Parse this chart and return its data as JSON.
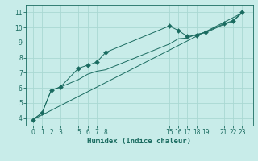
{
  "xlabel": "Humidex (Indice chaleur)",
  "ylabel": "",
  "bg_color": "#c8ece9",
  "grid_color": "#aad8d3",
  "line_color": "#1a6b60",
  "xlim": [
    -0.8,
    24.2
  ],
  "ylim": [
    3.5,
    11.5
  ],
  "xticks": [
    0,
    1,
    2,
    3,
    5,
    6,
    7,
    8,
    15,
    16,
    17,
    18,
    19,
    21,
    22,
    23
  ],
  "yticks": [
    4,
    5,
    6,
    7,
    8,
    9,
    10,
    11
  ],
  "series1_x": [
    0,
    1,
    2,
    3,
    5,
    6,
    7,
    8,
    15,
    16,
    17,
    18,
    19,
    21,
    22,
    23
  ],
  "series1_y": [
    3.9,
    4.35,
    5.85,
    6.05,
    7.3,
    7.5,
    7.7,
    8.35,
    10.1,
    9.8,
    9.4,
    9.5,
    9.7,
    10.25,
    10.45,
    11.0
  ],
  "series2_x": [
    0,
    1,
    2,
    3,
    5,
    6,
    7,
    8,
    15,
    16,
    17,
    18,
    19,
    21,
    22,
    23
  ],
  "series2_y": [
    3.9,
    4.35,
    5.85,
    6.05,
    6.55,
    6.9,
    7.1,
    7.2,
    8.9,
    9.25,
    9.3,
    9.55,
    9.65,
    10.2,
    10.4,
    10.95
  ],
  "series3_x": [
    0,
    23
  ],
  "series3_y": [
    3.9,
    10.95
  ],
  "tick_fontsize": 5.5,
  "xlabel_fontsize": 6.5,
  "lw": 0.7,
  "marker_size": 3
}
